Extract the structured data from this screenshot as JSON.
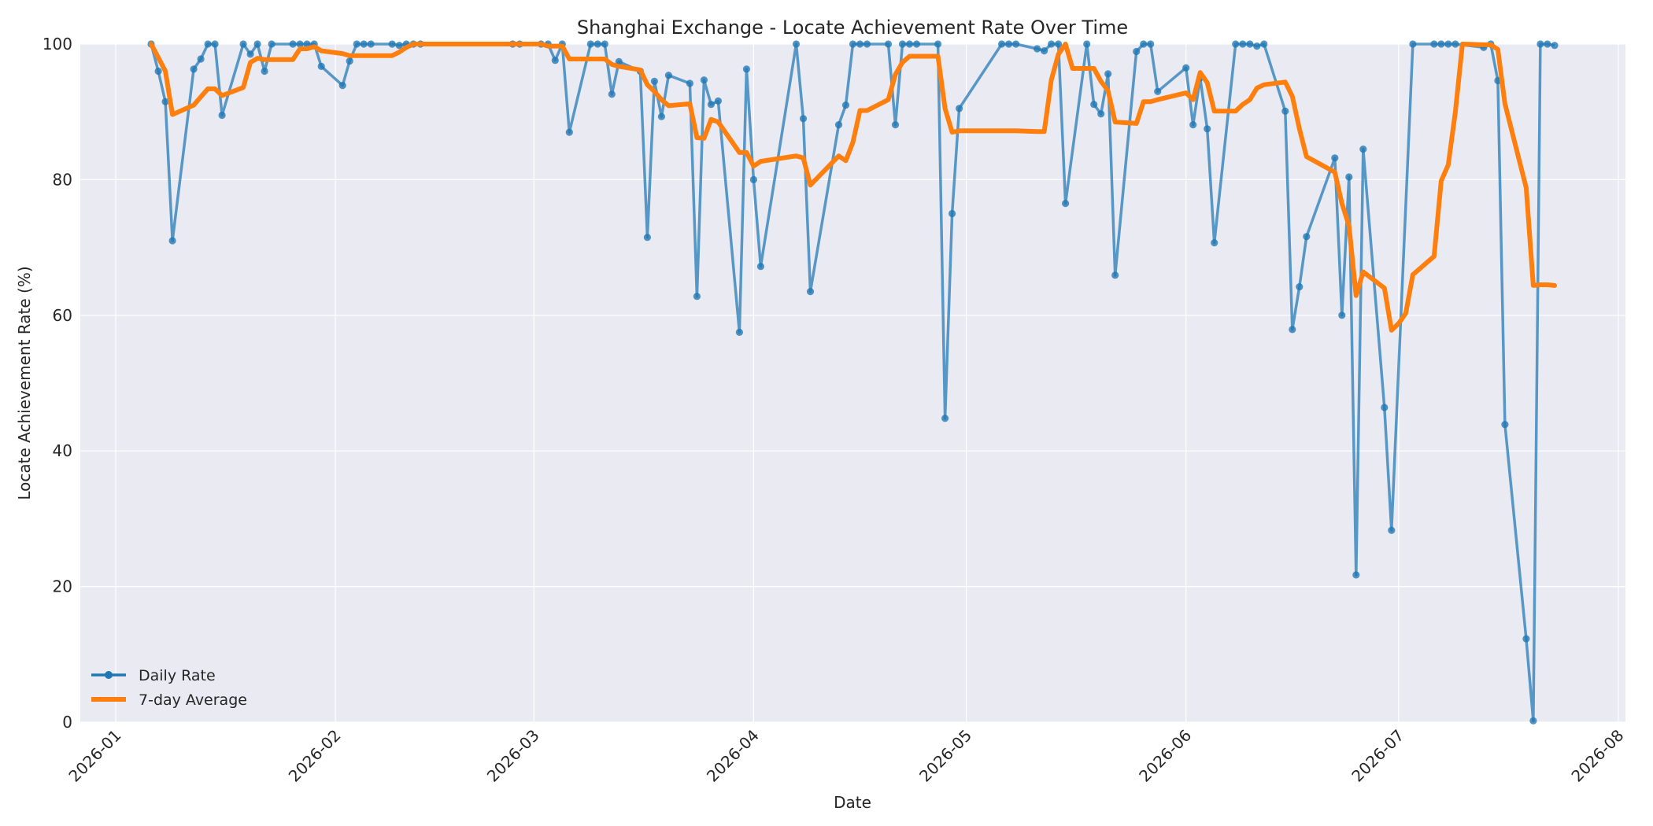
{
  "chart_data": {
    "type": "line",
    "title": "Shanghai Exchange - Locate Achievement Rate Over Time",
    "xlabel": "Date",
    "ylabel": "Locate Achievement Rate (%)",
    "xlim": [
      "2025-12-27",
      "2026-08-02"
    ],
    "ylim": [
      0,
      100
    ],
    "grid": true,
    "legend": "lower-left",
    "x_ticks": [
      "2026-01",
      "2026-02",
      "2026-03",
      "2026-04",
      "2026-05",
      "2026-06",
      "2026-07",
      "2026-08"
    ],
    "y_ticks": [
      0,
      20,
      40,
      60,
      80,
      100
    ],
    "colors": {
      "daily": "#1f77b4",
      "avg": "#ff7f0e",
      "plot_bg": "#eaeaf2",
      "grid": "#ffffff"
    },
    "series": [
      {
        "name": "Daily Rate",
        "style": "line-markers",
        "points": [
          [
            "2026-01-06",
            100
          ],
          [
            "2026-01-07",
            96
          ],
          [
            "2026-01-08",
            91.5
          ],
          [
            "2026-01-09",
            71
          ],
          [
            "2026-01-12",
            96.3
          ],
          [
            "2026-01-13",
            97.8
          ],
          [
            "2026-01-14",
            100
          ],
          [
            "2026-01-15",
            100
          ],
          [
            "2026-01-16",
            89.5
          ],
          [
            "2026-01-19",
            100
          ],
          [
            "2026-01-20",
            98.5
          ],
          [
            "2026-01-21",
            100
          ],
          [
            "2026-01-22",
            96
          ],
          [
            "2026-01-23",
            100
          ],
          [
            "2026-01-26",
            100
          ],
          [
            "2026-01-27",
            100
          ],
          [
            "2026-01-28",
            100
          ],
          [
            "2026-01-29",
            100
          ],
          [
            "2026-01-30",
            96.7
          ],
          [
            "2026-02-02",
            93.9
          ],
          [
            "2026-02-03",
            97.5
          ],
          [
            "2026-02-04",
            100
          ],
          [
            "2026-02-05",
            100
          ],
          [
            "2026-02-06",
            100
          ],
          [
            "2026-02-09",
            100
          ],
          [
            "2026-02-10",
            99.8
          ],
          [
            "2026-02-11",
            100
          ],
          [
            "2026-02-12",
            100
          ],
          [
            "2026-02-13",
            100
          ],
          [
            "2026-02-26",
            100
          ],
          [
            "2026-02-27",
            100
          ],
          [
            "2026-03-02",
            100
          ],
          [
            "2026-03-03",
            100
          ],
          [
            "2026-03-04",
            97.6
          ],
          [
            "2026-03-05",
            100
          ],
          [
            "2026-03-06",
            87
          ],
          [
            "2026-03-09",
            100
          ],
          [
            "2026-03-10",
            100
          ],
          [
            "2026-03-11",
            100
          ],
          [
            "2026-03-12",
            92.6
          ],
          [
            "2026-03-13",
            97.4
          ],
          [
            "2026-03-16",
            96
          ],
          [
            "2026-03-17",
            71.5
          ],
          [
            "2026-03-18",
            94.5
          ],
          [
            "2026-03-19",
            89.3
          ],
          [
            "2026-03-20",
            95.4
          ],
          [
            "2026-03-23",
            94.2
          ],
          [
            "2026-03-24",
            62.8
          ],
          [
            "2026-03-25",
            94.7
          ],
          [
            "2026-03-26",
            91.1
          ],
          [
            "2026-03-27",
            91.6
          ],
          [
            "2026-03-30",
            57.5
          ],
          [
            "2026-03-31",
            96.3
          ],
          [
            "2026-04-01",
            80
          ],
          [
            "2026-04-02",
            67.2
          ],
          [
            "2026-04-07",
            100
          ],
          [
            "2026-04-08",
            89
          ],
          [
            "2026-04-09",
            63.5
          ],
          [
            "2026-04-13",
            88.1
          ],
          [
            "2026-04-14",
            91
          ],
          [
            "2026-04-15",
            100
          ],
          [
            "2026-04-16",
            100
          ],
          [
            "2026-04-17",
            100
          ],
          [
            "2026-04-20",
            100
          ],
          [
            "2026-04-21",
            88.1
          ],
          [
            "2026-04-22",
            100
          ],
          [
            "2026-04-23",
            100
          ],
          [
            "2026-04-24",
            100
          ],
          [
            "2026-04-27",
            100
          ],
          [
            "2026-04-28",
            44.8
          ],
          [
            "2026-04-29",
            75
          ],
          [
            "2026-04-30",
            90.5
          ],
          [
            "2026-05-06",
            100
          ],
          [
            "2026-05-07",
            100
          ],
          [
            "2026-05-08",
            100
          ],
          [
            "2026-05-11",
            99.3
          ],
          [
            "2026-05-12",
            99
          ],
          [
            "2026-05-13",
            100
          ],
          [
            "2026-05-14",
            100
          ],
          [
            "2026-05-15",
            76.5
          ],
          [
            "2026-05-18",
            100
          ],
          [
            "2026-05-19",
            91.1
          ],
          [
            "2026-05-20",
            89.7
          ],
          [
            "2026-05-21",
            95.6
          ],
          [
            "2026-05-22",
            65.9
          ],
          [
            "2026-05-25",
            98.9
          ],
          [
            "2026-05-26",
            100
          ],
          [
            "2026-05-27",
            100
          ],
          [
            "2026-05-28",
            93
          ],
          [
            "2026-06-01",
            96.5
          ],
          [
            "2026-06-02",
            88.1
          ],
          [
            "2026-06-03",
            95
          ],
          [
            "2026-06-04",
            87.5
          ],
          [
            "2026-06-05",
            70.7
          ],
          [
            "2026-06-08",
            100
          ],
          [
            "2026-06-09",
            100
          ],
          [
            "2026-06-10",
            100
          ],
          [
            "2026-06-11",
            99.7
          ],
          [
            "2026-06-12",
            100
          ],
          [
            "2026-06-15",
            90.1
          ],
          [
            "2026-06-16",
            57.9
          ],
          [
            "2026-06-17",
            64.2
          ],
          [
            "2026-06-18",
            71.6
          ],
          [
            "2026-06-22",
            83.2
          ],
          [
            "2026-06-23",
            60
          ],
          [
            "2026-06-24",
            80.4
          ],
          [
            "2026-06-25",
            21.7
          ],
          [
            "2026-06-26",
            84.5
          ],
          [
            "2026-06-29",
            46.4
          ],
          [
            "2026-06-30",
            28.3
          ],
          [
            "2026-07-03",
            100
          ],
          [
            "2026-07-06",
            100
          ],
          [
            "2026-07-07",
            100
          ],
          [
            "2026-07-08",
            100
          ],
          [
            "2026-07-09",
            100
          ],
          [
            "2026-07-13",
            99.5
          ],
          [
            "2026-07-14",
            100
          ],
          [
            "2026-07-15",
            94.6
          ],
          [
            "2026-07-16",
            43.9
          ],
          [
            "2026-07-19",
            12.3
          ],
          [
            "2026-07-20",
            0.2
          ],
          [
            "2026-07-21",
            100
          ],
          [
            "2026-07-22",
            100
          ],
          [
            "2026-07-23",
            99.8
          ]
        ]
      },
      {
        "name": "7-day Average",
        "style": "line",
        "points": [
          [
            "2026-01-06",
            100
          ],
          [
            "2026-01-07",
            98
          ],
          [
            "2026-01-08",
            96
          ],
          [
            "2026-01-09",
            89.6
          ],
          [
            "2026-01-12",
            91
          ],
          [
            "2026-01-13",
            92.2
          ],
          [
            "2026-01-14",
            93.4
          ],
          [
            "2026-01-15",
            93.4
          ],
          [
            "2026-01-16",
            92.4
          ],
          [
            "2026-01-19",
            93.6
          ],
          [
            "2026-01-20",
            97.3
          ],
          [
            "2026-01-21",
            97.9
          ],
          [
            "2026-01-22",
            97.7
          ],
          [
            "2026-01-23",
            97.7
          ],
          [
            "2026-01-26",
            97.7
          ],
          [
            "2026-01-27",
            99.3
          ],
          [
            "2026-01-28",
            99.3
          ],
          [
            "2026-01-29",
            99.6
          ],
          [
            "2026-01-30",
            99
          ],
          [
            "2026-02-02",
            98.6
          ],
          [
            "2026-02-03",
            98.3
          ],
          [
            "2026-02-04",
            98.3
          ],
          [
            "2026-02-05",
            98.3
          ],
          [
            "2026-02-06",
            98.3
          ],
          [
            "2026-02-09",
            98.3
          ],
          [
            "2026-02-10",
            98.8
          ],
          [
            "2026-02-11",
            99.5
          ],
          [
            "2026-02-12",
            100
          ],
          [
            "2026-02-13",
            100
          ],
          [
            "2026-03-02",
            100
          ],
          [
            "2026-03-03",
            99.7
          ],
          [
            "2026-03-04",
            99.7
          ],
          [
            "2026-03-05",
            99.7
          ],
          [
            "2026-03-06",
            97.8
          ],
          [
            "2026-03-09",
            97.8
          ],
          [
            "2026-03-10",
            97.8
          ],
          [
            "2026-03-11",
            97.8
          ],
          [
            "2026-03-12",
            97
          ],
          [
            "2026-03-13",
            96.7
          ],
          [
            "2026-03-16",
            96.2
          ],
          [
            "2026-03-17",
            94
          ],
          [
            "2026-03-18",
            93
          ],
          [
            "2026-03-19",
            91.8
          ],
          [
            "2026-03-20",
            90.9
          ],
          [
            "2026-03-23",
            91.2
          ],
          [
            "2026-03-24",
            86.2
          ],
          [
            "2026-03-25",
            86.1
          ],
          [
            "2026-03-26",
            88.9
          ],
          [
            "2026-03-27",
            88.5
          ],
          [
            "2026-03-30",
            84
          ],
          [
            "2026-03-31",
            84
          ],
          [
            "2026-04-01",
            82
          ],
          [
            "2026-04-02",
            82.7
          ],
          [
            "2026-04-07",
            83.5
          ],
          [
            "2026-04-08",
            83.2
          ],
          [
            "2026-04-09",
            79.2
          ],
          [
            "2026-04-13",
            83.5
          ],
          [
            "2026-04-14",
            82.8
          ],
          [
            "2026-04-15",
            85.5
          ],
          [
            "2026-04-16",
            90.2
          ],
          [
            "2026-04-17",
            90.2
          ],
          [
            "2026-04-20",
            91.8
          ],
          [
            "2026-04-21",
            95.5
          ],
          [
            "2026-04-22",
            97.3
          ],
          [
            "2026-04-23",
            98.2
          ],
          [
            "2026-04-24",
            98.2
          ],
          [
            "2026-04-27",
            98.2
          ],
          [
            "2026-04-28",
            90.5
          ],
          [
            "2026-04-29",
            87
          ],
          [
            "2026-04-30",
            87.2
          ],
          [
            "2026-05-08",
            87.2
          ],
          [
            "2026-05-11",
            87.1
          ],
          [
            "2026-05-12",
            87.1
          ],
          [
            "2026-05-13",
            94.7
          ],
          [
            "2026-05-14",
            98.5
          ],
          [
            "2026-05-15",
            100
          ],
          [
            "2026-05-16",
            96.4
          ],
          [
            "2026-05-18",
            96.4
          ],
          [
            "2026-05-19",
            96.4
          ],
          [
            "2026-05-20",
            94.5
          ],
          [
            "2026-05-21",
            93.1
          ],
          [
            "2026-05-22",
            88.5
          ],
          [
            "2026-05-25",
            88.3
          ],
          [
            "2026-05-26",
            91.5
          ],
          [
            "2026-05-27",
            91.5
          ],
          [
            "2026-05-28",
            91.8
          ],
          [
            "2026-06-01",
            92.8
          ],
          [
            "2026-06-02",
            91.8
          ],
          [
            "2026-06-03",
            95.8
          ],
          [
            "2026-06-04",
            94.3
          ],
          [
            "2026-06-05",
            90.1
          ],
          [
            "2026-06-08",
            90.1
          ],
          [
            "2026-06-09",
            91.1
          ],
          [
            "2026-06-10",
            91.8
          ],
          [
            "2026-06-11",
            93.5
          ],
          [
            "2026-06-12",
            94
          ],
          [
            "2026-06-15",
            94.4
          ],
          [
            "2026-06-16",
            92.3
          ],
          [
            "2026-06-17",
            87.5
          ],
          [
            "2026-06-18",
            83.4
          ],
          [
            "2026-06-22",
            81.1
          ],
          [
            "2026-06-23",
            76.5
          ],
          [
            "2026-06-24",
            73.2
          ],
          [
            "2026-06-25",
            62.9
          ],
          [
            "2026-06-26",
            66.4
          ],
          [
            "2026-06-29",
            64
          ],
          [
            "2026-06-30",
            57.8
          ],
          [
            "2026-07-01",
            58.8
          ],
          [
            "2026-07-02",
            60.3
          ],
          [
            "2026-07-03",
            66
          ],
          [
            "2026-07-06",
            68.7
          ],
          [
            "2026-07-07",
            79.8
          ],
          [
            "2026-07-08",
            82.2
          ],
          [
            "2026-07-09",
            90
          ],
          [
            "2026-07-10",
            100
          ],
          [
            "2026-07-13",
            99.9
          ],
          [
            "2026-07-14",
            99.9
          ],
          [
            "2026-07-15",
            99.2
          ],
          [
            "2026-07-16",
            91.2
          ],
          [
            "2026-07-19",
            78.8
          ],
          [
            "2026-07-20",
            64.4
          ],
          [
            "2026-07-21",
            64.5
          ],
          [
            "2026-07-22",
            64.5
          ],
          [
            "2026-07-23",
            64.4
          ]
        ]
      }
    ]
  }
}
